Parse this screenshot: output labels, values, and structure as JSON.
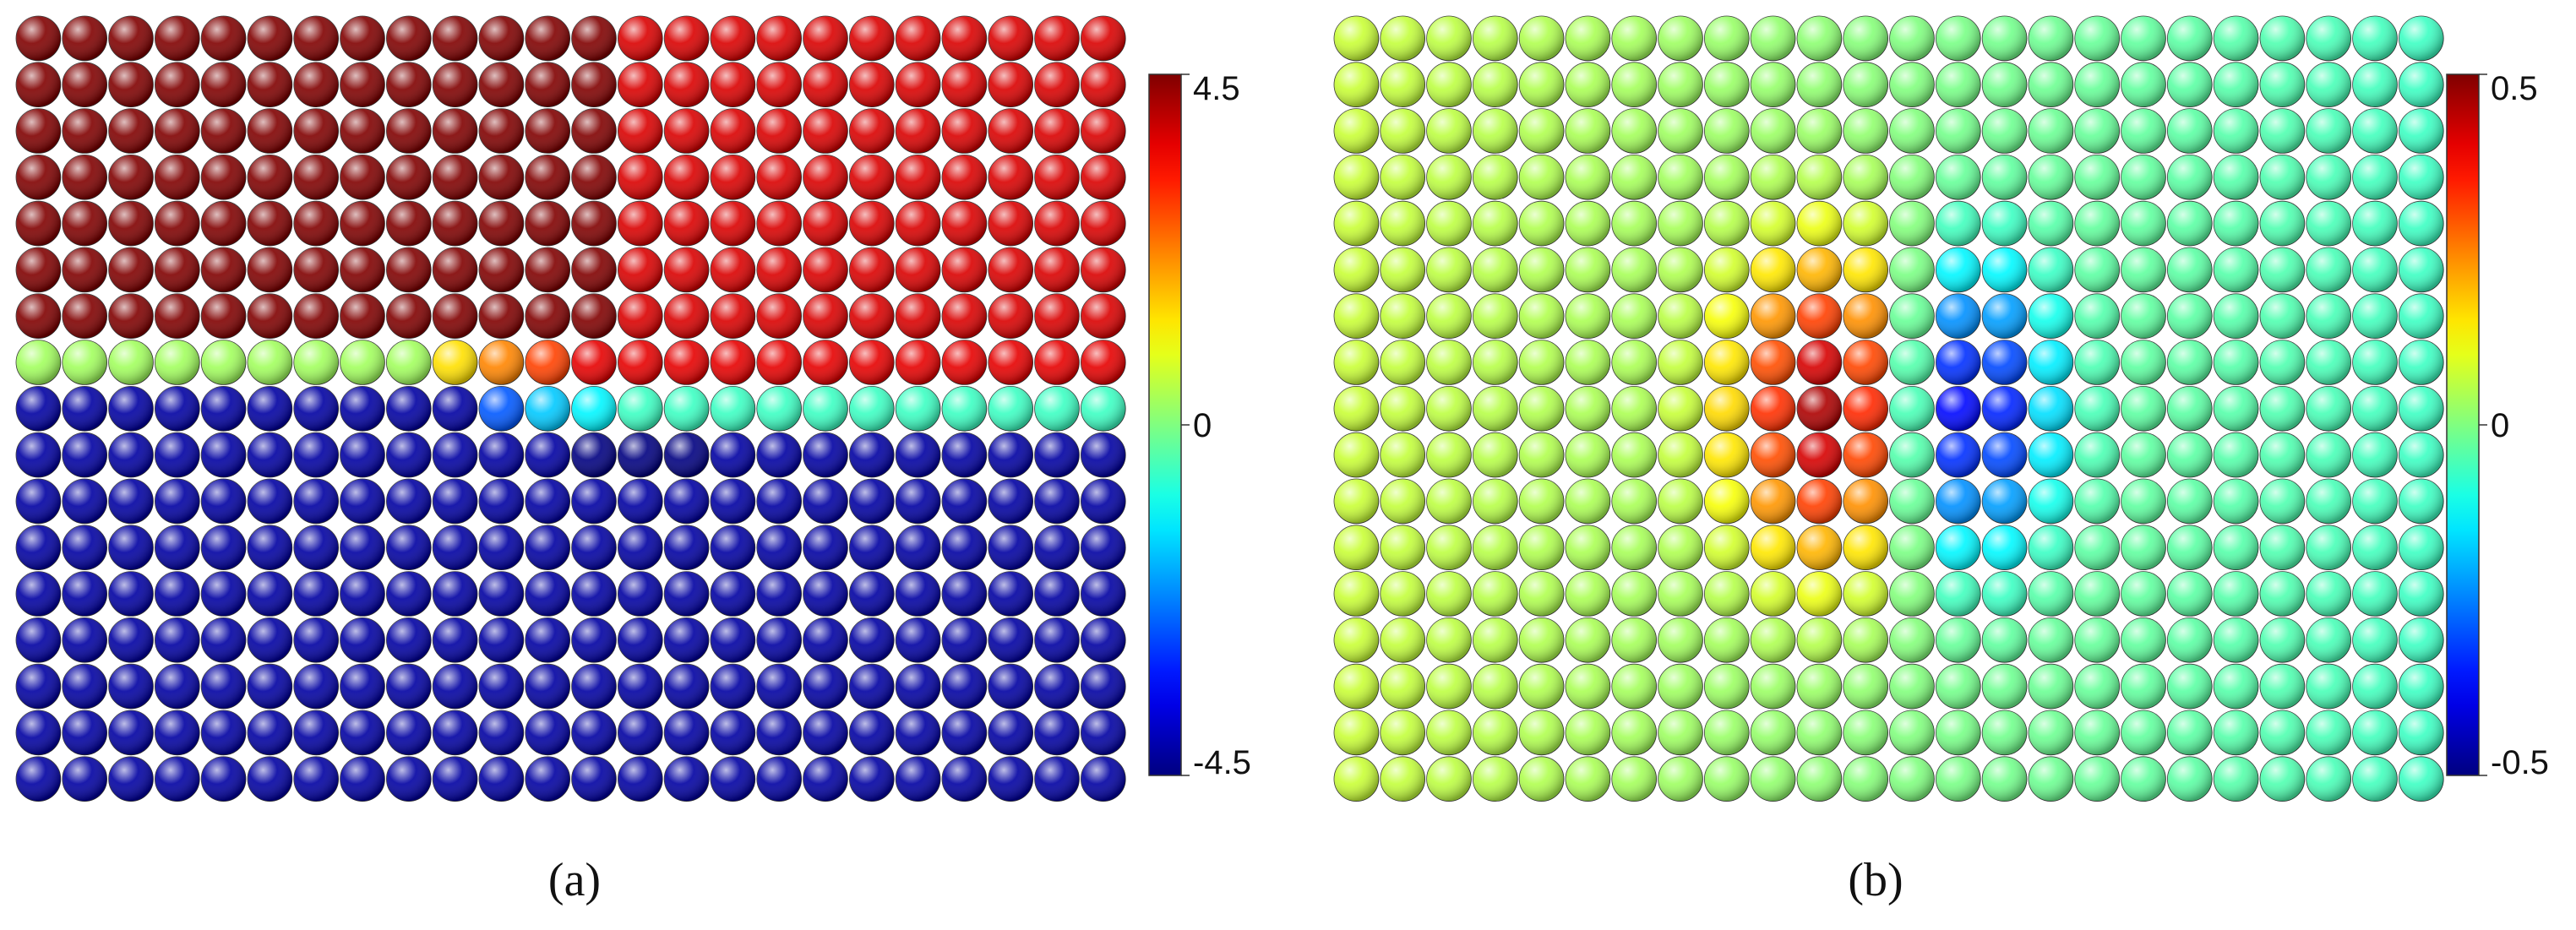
{
  "panels": [
    {
      "id": "a",
      "caption": "(a)",
      "colorbar": {
        "max_label": "4.5",
        "zero_label": "0",
        "min_label": "-4.5",
        "min": -4.5,
        "max": 4.5
      },
      "lattice": {
        "rows": 17,
        "cols": 24,
        "description_rows": "upper 7 rows positive (~4.5 peak), row 8 and 9 crack-tip transition, lower 8 rows negative"
      }
    },
    {
      "id": "b",
      "caption": "(b)",
      "colorbar": {
        "max_label": "0.5",
        "zero_label": "0",
        "min_label": "-0.5",
        "min": -0.5,
        "max": 0.5
      },
      "lattice": {
        "rows": 17,
        "cols": 24,
        "description_rows": "positive lobe left of center, negative lobe right of center"
      }
    }
  ],
  "colors": {
    "jet_stops": [
      "#00007f",
      "#0000ff",
      "#00ffff",
      "#7fff7f",
      "#ffff00",
      "#ff7f00",
      "#ff0000",
      "#7f0000"
    ]
  }
}
